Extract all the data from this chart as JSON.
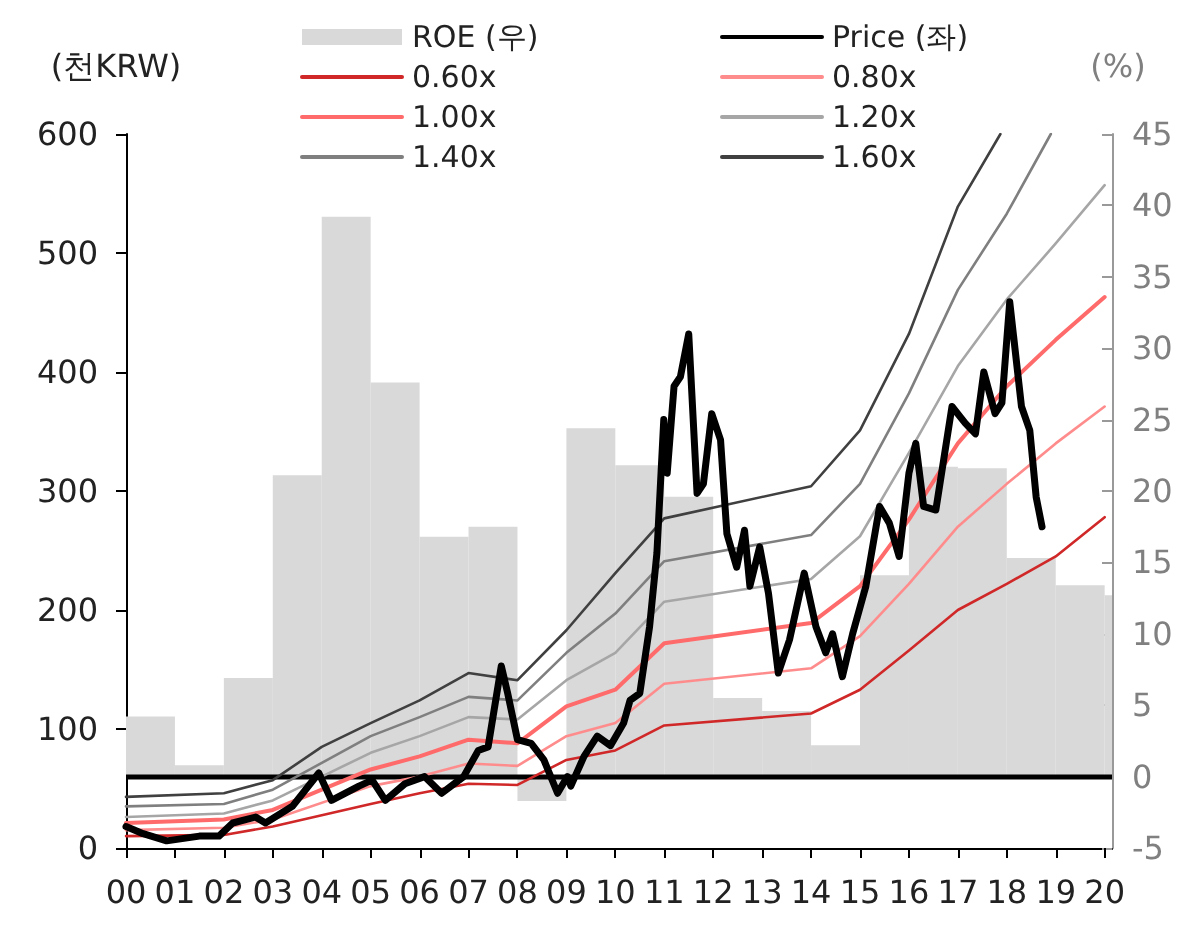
{
  "chart_data": {
    "type": "line",
    "ylabel": "(천KRW)",
    "y2label": "(%)",
    "xlim": [
      2000,
      2020.15
    ],
    "xticks": [
      {
        "value": 2000,
        "label": "00"
      },
      {
        "value": 2001,
        "label": "01"
      },
      {
        "value": 2002,
        "label": "02"
      },
      {
        "value": 2003,
        "label": "03"
      },
      {
        "value": 2004,
        "label": "04"
      },
      {
        "value": 2005,
        "label": "05"
      },
      {
        "value": 2006,
        "label": "06"
      },
      {
        "value": 2007,
        "label": "07"
      },
      {
        "value": 2008,
        "label": "08"
      },
      {
        "value": 2009,
        "label": "09"
      },
      {
        "value": 2010,
        "label": "10"
      },
      {
        "value": 2011,
        "label": "11"
      },
      {
        "value": 2012,
        "label": "12"
      },
      {
        "value": 2013,
        "label": "13"
      },
      {
        "value": 2014,
        "label": "14"
      },
      {
        "value": 2015,
        "label": "15"
      },
      {
        "value": 2016,
        "label": "16"
      },
      {
        "value": 2017,
        "label": "17"
      },
      {
        "value": 2018,
        "label": "18"
      },
      {
        "value": 2019,
        "label": "19"
      },
      {
        "value": 2020,
        "label": "20"
      }
    ],
    "ylim": [
      0,
      600
    ],
    "yticks": [
      0,
      100,
      200,
      300,
      400,
      500,
      600
    ],
    "y2lim": [
      -5,
      45
    ],
    "y2ticks": [
      -5,
      0,
      5,
      10,
      15,
      20,
      25,
      30,
      35,
      40,
      45
    ],
    "grid": false,
    "legend": "top",
    "marker": "none",
    "line_style": "solid",
    "ref_lines": [
      {
        "axis": "y2",
        "value": 0,
        "color": "#000000"
      }
    ],
    "series": [
      {
        "name": "ROE (우)",
        "type": "bar",
        "axis": "y2",
        "color": "#d9d9d9",
        "x": [
          2000.5,
          2001.5,
          2002.5,
          2003.5,
          2004.5,
          2005.5,
          2006.5,
          2007.5,
          2008.5,
          2009.5,
          2010.5,
          2011.5,
          2012.5,
          2013.5,
          2014.5,
          2015.5,
          2016.5,
          2017.5,
          2018.5,
          2019.5,
          2020.075
        ],
        "values": [
          4.2,
          0.8,
          6.9,
          21.1,
          39.2,
          27.6,
          16.8,
          17.5,
          -1.7,
          24.4,
          21.8,
          19.6,
          5.5,
          4.6,
          2.2,
          14.1,
          21.7,
          21.6,
          15.3,
          13.4,
          12.7
        ]
      },
      {
        "name": "Price (좌)",
        "color": "#000000",
        "x": [
          2000.0,
          2000.35,
          2000.83,
          2001.5,
          2001.9,
          2002.18,
          2002.65,
          2002.85,
          2003.4,
          2003.94,
          2004.2,
          2004.76,
          2005.03,
          2005.3,
          2005.7,
          2006.1,
          2006.45,
          2006.9,
          2007.2,
          2007.4,
          2007.67,
          2007.8,
          2008.0,
          2008.28,
          2008.54,
          2008.82,
          2009.02,
          2009.09,
          2009.36,
          2009.63,
          2009.9,
          2010.17,
          2010.3,
          2010.5,
          2010.7,
          2010.85,
          2010.99,
          2011.06,
          2011.2,
          2011.33,
          2011.5,
          2011.67,
          2011.8,
          2011.97,
          2012.15,
          2012.28,
          2012.48,
          2012.64,
          2012.75,
          2012.95,
          2013.13,
          2013.33,
          2013.56,
          2013.86,
          2014.1,
          2014.3,
          2014.44,
          2014.64,
          2014.85,
          2015.12,
          2015.4,
          2015.6,
          2015.8,
          2016.0,
          2016.14,
          2016.3,
          2016.55,
          2016.88,
          2017.15,
          2017.36,
          2017.53,
          2017.76,
          2017.9,
          2018.06,
          2018.3,
          2018.47,
          2018.6,
          2018.72
        ],
        "values": [
          18,
          12,
          6,
          10,
          10,
          21,
          26,
          21,
          35,
          63,
          40,
          52,
          57,
          40,
          54,
          60,
          46,
          60,
          82,
          85,
          153,
          130,
          91,
          88,
          74,
          46,
          60,
          52,
          77,
          94,
          86,
          105,
          124,
          130,
          186,
          248,
          360,
          315,
          388,
          396,
          432,
          298,
          306,
          365,
          343,
          264,
          236,
          267,
          220,
          253,
          214,
          147,
          175,
          231,
          186,
          164,
          180,
          144,
          180,
          220,
          287,
          273,
          245,
          315,
          340,
          287,
          284,
          371,
          357,
          348,
          400,
          365,
          374,
          459,
          371,
          351,
          295,
          270
        ]
      },
      {
        "name": "0.60x",
        "color": "#d02828",
        "x": [
          2000,
          2002,
          2003,
          2005,
          2006,
          2007,
          2008,
          2009,
          2010,
          2011,
          2014,
          2015,
          2016,
          2017,
          2018,
          2019,
          2020
        ],
        "values": [
          10,
          11,
          18,
          37,
          46,
          54,
          53,
          74,
          82,
          103,
          113,
          133,
          166,
          200,
          222,
          245,
          278
        ]
      },
      {
        "name": "0.80x",
        "color": "#ff8c8c",
        "x": [
          2000,
          2002,
          2003,
          2005,
          2006,
          2007,
          2008,
          2009,
          2010,
          2011,
          2014,
          2015,
          2016,
          2017,
          2018,
          2019,
          2020
        ],
        "values": [
          15,
          17,
          24,
          52,
          60,
          71,
          69,
          94,
          105,
          138,
          151,
          178,
          222,
          270,
          306,
          340,
          371
        ]
      },
      {
        "name": "1.00x",
        "color": "#ff6b6b",
        "x": [
          2000,
          2002,
          2003,
          2005,
          2006,
          2007,
          2008,
          2009,
          2010,
          2011,
          2014,
          2015,
          2016,
          2017,
          2018,
          2019,
          2020
        ],
        "values": [
          21,
          24,
          32,
          66,
          77,
          91,
          88,
          119,
          133,
          172,
          189,
          220,
          276,
          340,
          388,
          427,
          463
        ]
      },
      {
        "name": "1.20x",
        "color": "#a6a6a6",
        "x": [
          2000,
          2002,
          2003,
          2005,
          2006,
          2007,
          2008,
          2009,
          2010,
          2011,
          2014,
          2015,
          2016,
          2017,
          2018,
          2019,
          2020
        ],
        "values": [
          26,
          29,
          40,
          80,
          94,
          110,
          108,
          141,
          164,
          207,
          226,
          262,
          332,
          405,
          461,
          508,
          557
        ]
      },
      {
        "name": "1.40x",
        "color": "#7f7f7f",
        "x": [
          2000,
          2002,
          2003,
          2005,
          2006,
          2007,
          2008,
          2009,
          2010,
          2011,
          2014,
          2015,
          2016,
          2017,
          2018,
          2018.9
        ],
        "values": [
          35,
          37,
          49,
          94,
          110,
          127,
          124,
          164,
          197,
          241,
          263,
          306,
          382,
          469,
          533,
          600
        ]
      },
      {
        "name": "1.60x",
        "color": "#404040",
        "x": [
          2000,
          2002,
          2003,
          2004,
          2005,
          2006,
          2007,
          2008,
          2009,
          2010,
          2011,
          2014,
          2015,
          2016,
          2017,
          2017.87
        ],
        "values": [
          43,
          46,
          57,
          85,
          105,
          124,
          147,
          141,
          183,
          231,
          277,
          304,
          351,
          432,
          539,
          600
        ]
      }
    ]
  }
}
